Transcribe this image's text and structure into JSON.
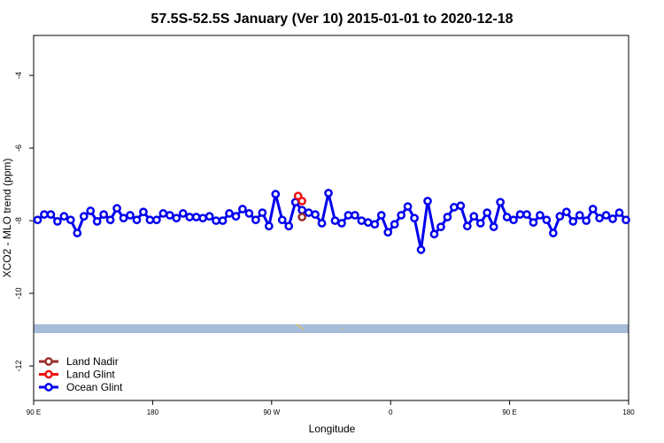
{
  "chart_data": {
    "type": "line",
    "title": "57.5S-52.5S January (Ver 10)   2015-01-01 to 2020-12-18",
    "x_label": "Longitude",
    "y_label": "XCO2 - MLO trend (ppm)",
    "xlim": [
      90,
      540
    ],
    "ylim": [
      -12.95,
      -2.9
    ],
    "xticks": [
      {
        "value": 90,
        "label": "90 E"
      },
      {
        "value": 180,
        "label": "180"
      },
      {
        "value": 270,
        "label": "90 W"
      },
      {
        "value": 360,
        "label": "0"
      },
      {
        "value": 450,
        "label": "90 E"
      },
      {
        "value": 540,
        "label": "180"
      }
    ],
    "yticks": [
      -4,
      -6,
      -8,
      -10,
      -12
    ],
    "legend": "bottom left",
    "series": [
      {
        "name": "Land Nadir",
        "color": "#9b2c2c",
        "x": [
          293
        ],
        "values": [
          -7.9
        ]
      },
      {
        "name": "Land Glint",
        "color": "#ee1111",
        "x": [
          290,
          293
        ],
        "values": [
          -7.32,
          -7.46
        ]
      },
      {
        "name": "Ocean Glint",
        "color": "#0000ee",
        "x": [
          93,
          98,
          103,
          108,
          113,
          118,
          123,
          128,
          133,
          138,
          143,
          148,
          153,
          158,
          163,
          168,
          173,
          178,
          183,
          188,
          193,
          198,
          203,
          208,
          213,
          218,
          223,
          228,
          233,
          238,
          243,
          248,
          253,
          258,
          263,
          268,
          273,
          278,
          283,
          288,
          293,
          298,
          303,
          308,
          313,
          318,
          323,
          328,
          333,
          338,
          343,
          348,
          353,
          358,
          363,
          368,
          373,
          378,
          383,
          388,
          393,
          398,
          403,
          408,
          413,
          418,
          423,
          428,
          433,
          438,
          443,
          448,
          453,
          458,
          463,
          468,
          473,
          478,
          483,
          488,
          493,
          498,
          503,
          508,
          513,
          518,
          523,
          528,
          533,
          538
        ],
        "values": [
          -7.98,
          -7.83,
          -7.83,
          -8.02,
          -7.88,
          -7.98,
          -8.34,
          -7.88,
          -7.73,
          -8.02,
          -7.83,
          -7.98,
          -7.66,
          -7.93,
          -7.85,
          -7.98,
          -7.76,
          -7.98,
          -7.98,
          -7.8,
          -7.85,
          -7.93,
          -7.8,
          -7.9,
          -7.9,
          -7.93,
          -7.88,
          -8.0,
          -8.0,
          -7.8,
          -7.88,
          -7.68,
          -7.8,
          -7.98,
          -7.78,
          -8.15,
          -7.27,
          -7.98,
          -8.15,
          -7.49,
          -7.71,
          -7.78,
          -7.83,
          -8.07,
          -7.24,
          -8.0,
          -8.07,
          -7.85,
          -7.85,
          -8.0,
          -8.05,
          -8.1,
          -7.85,
          -8.32,
          -8.1,
          -7.85,
          -7.61,
          -7.93,
          -8.8,
          -7.46,
          -8.37,
          -8.17,
          -7.9,
          -7.63,
          -7.59,
          -8.15,
          -7.88,
          -8.07,
          -7.78,
          -8.17,
          -7.49,
          -7.9,
          -7.98,
          -7.83,
          -7.83,
          -8.05,
          -7.85,
          -7.98,
          -8.34,
          -7.88,
          -7.76,
          -8.02,
          -7.85,
          -8.0,
          -7.68,
          -7.93,
          -7.85,
          -7.95,
          -7.78,
          -7.98
        ]
      }
    ]
  }
}
